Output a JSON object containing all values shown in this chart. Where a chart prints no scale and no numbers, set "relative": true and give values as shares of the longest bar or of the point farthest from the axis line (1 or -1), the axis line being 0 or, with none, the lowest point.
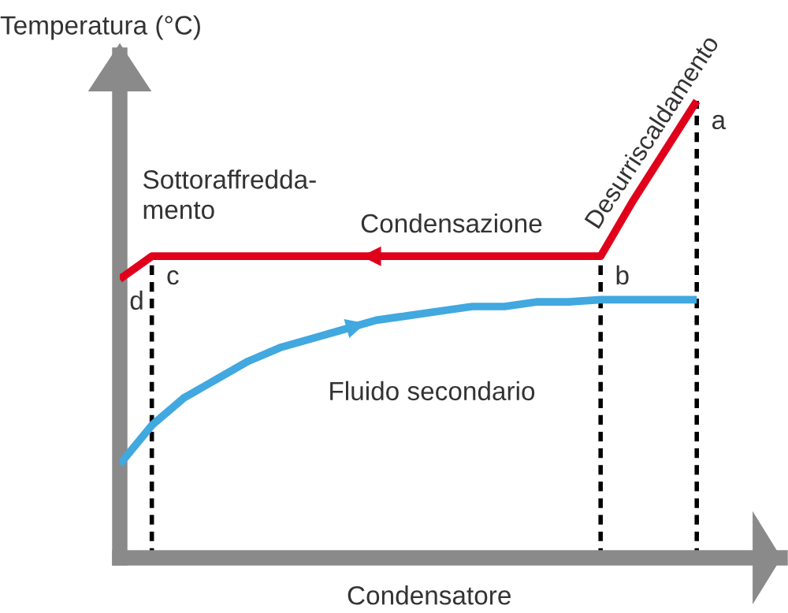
{
  "chart_data": {
    "type": "line",
    "relative": true,
    "xlabel": "Condensatore",
    "ylabel": "Temperatura (°C)",
    "legend": false,
    "marker": "none",
    "line_style": "solid",
    "categories": [
      null,
      null,
      null,
      null,
      null,
      null,
      null,
      null,
      null,
      null,
      null,
      null,
      null,
      null,
      null,
      null,
      null,
      null,
      null
    ],
    "series": [
      {
        "color": "#e0001b",
        "values": [
          0.61,
          0.66,
          0.66,
          0.66,
          0.66,
          0.66,
          0.66,
          0.66,
          0.66,
          0.66,
          0.66,
          0.66,
          0.66,
          0.66,
          0.66,
          0.66,
          0.78,
          0.89,
          1
        ]
      },
      {
        "name": "Fluido secondario",
        "color": "#41a8e0",
        "values": [
          0.205,
          0.29,
          0.35,
          0.39,
          0.43,
          0.46,
          0.48,
          0.5,
          0.52,
          0.53,
          0.54,
          0.55,
          0.55,
          0.56,
          0.56,
          0.565,
          0.565,
          0.565,
          0.565
        ]
      }
    ],
    "annotations": [
      "d",
      "c",
      "b",
      "a",
      "Sottoraffredda-\nmento",
      "Condensazione",
      "Desurriscaldamento"
    ]
  }
}
